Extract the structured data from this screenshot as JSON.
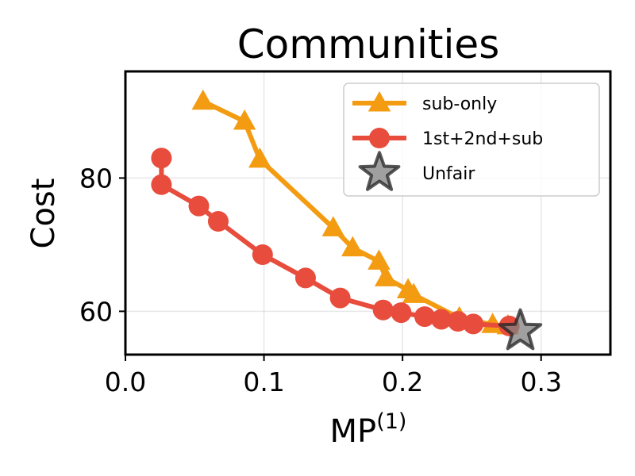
{
  "chart_data": {
    "type": "line",
    "title": "Communities",
    "xlabel": "MP",
    "xlabel_superscript": "(1)",
    "ylabel": "Cost",
    "xlim": [
      0.0,
      0.35
    ],
    "ylim": [
      53.5,
      96
    ],
    "xticks": [
      {
        "value": 0.0,
        "label": "0.0"
      },
      {
        "value": 0.1,
        "label": "0.1"
      },
      {
        "value": 0.2,
        "label": "0.2"
      },
      {
        "value": 0.3,
        "label": "0.3"
      }
    ],
    "yticks": [
      {
        "value": 60,
        "label": "60"
      },
      {
        "value": 80,
        "label": "80"
      }
    ],
    "grid": true,
    "legend_position": "top-right",
    "series": [
      {
        "name": "sub-only",
        "color": "#f39c12",
        "marker": "triangle",
        "points": [
          [
            0.056,
            91.5
          ],
          [
            0.086,
            88.5
          ],
          [
            0.097,
            82.8
          ],
          [
            0.15,
            72.5
          ],
          [
            0.164,
            69.5
          ],
          [
            0.183,
            67.5
          ],
          [
            0.188,
            65.0
          ],
          [
            0.204,
            63.2
          ],
          [
            0.208,
            62.5
          ],
          [
            0.241,
            59.0
          ],
          [
            0.265,
            58.0
          ],
          [
            0.276,
            57.8
          ]
        ]
      },
      {
        "name": "1st+2nd+sub",
        "color": "#e74c3c",
        "marker": "circle",
        "points": [
          [
            0.026,
            83.0
          ],
          [
            0.026,
            79.0
          ],
          [
            0.053,
            75.8
          ],
          [
            0.067,
            73.5
          ],
          [
            0.099,
            68.5
          ],
          [
            0.13,
            65.0
          ],
          [
            0.155,
            62.0
          ],
          [
            0.186,
            60.2
          ],
          [
            0.199,
            59.8
          ],
          [
            0.216,
            59.2
          ],
          [
            0.228,
            58.8
          ],
          [
            0.24,
            58.5
          ],
          [
            0.251,
            58.1
          ],
          [
            0.277,
            57.8
          ]
        ]
      },
      {
        "name": "Unfair",
        "color": "#808080",
        "marker": "star",
        "points": [
          [
            0.285,
            57.0
          ]
        ]
      }
    ]
  }
}
